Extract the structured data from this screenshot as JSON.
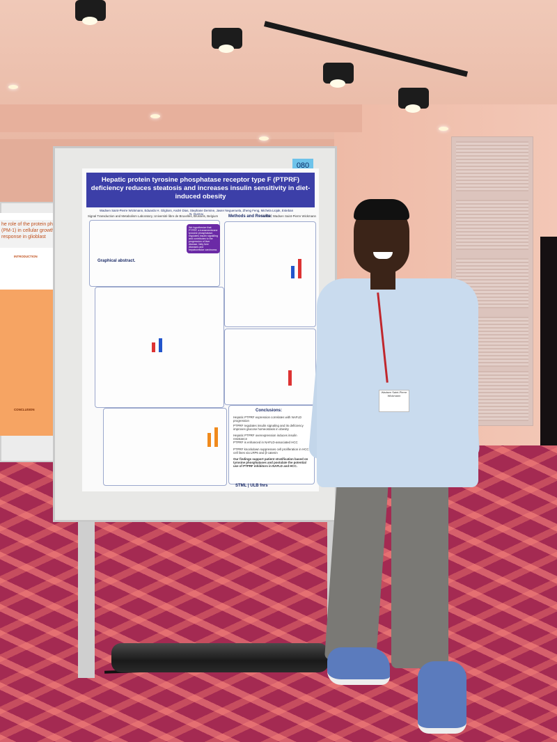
{
  "poster": {
    "number_tag": "080",
    "title": "Hepatic protein tyrosine phosphatase receptor type F (PTPRF) deficiency reduces steatosis and increases insulin sensitivity in diet-induced obesity",
    "authors": "Wadsen Saint-Pierre Wickmann, Eduardo H. Gilglioni, André Dias, Stephane Demine, Javier Negueruela, Zheng Feng, Michela Liojak, Esteban N. Gurzov",
    "affiliation": "Signal Transduction and Metabolism Laboratory, Université libre de Bruxelles, Brussels, Belgium",
    "contact": "Contact: Wadsen Saint-Pierre Wickmann",
    "hypothesis": "We hypothesize that PTPRF, a transmembrane tyrosine phosphatase, regulates insulin signalling and contributes to the progression of liver disease, fatty liver diseases and hepatocellular carcinoma.",
    "section_methods": "Methods and Results:",
    "section_graphical": "Graphical abstract.",
    "conclusions_title": "Conclusions:",
    "conclusions": [
      "Hepatic PTPRF expression correlates with NAFLD progression",
      "PTPRF regulates insulin signaling and its deficiency improves glucose homeostasis in obesity",
      "Hepatic PTPRF overexpression induces insulin resistance",
      "PTPRF is enhanced in NAFLD-associated HCC",
      "PTPRF knockdown suppresses cell proliferation in HCC cell lines via LRP6 and β-catenin"
    ],
    "closing": "Our findings support patient stratification based on tyrosine phosphatases and postulate the potential use of PTPRF inhibitors in NAFLD and HCC.",
    "logos": "STML | ULB  fnrs"
  },
  "left_poster": {
    "title_fragment": "he role of the protein phospha (PM-1) in cellular growth and response in glioblast",
    "sections": [
      "INTRODUCTION",
      "CONCLUSION"
    ]
  },
  "badge": {
    "text": "Wadsen Saint-Pierre Wickmann"
  },
  "colors": {
    "poster_title_band": "#3c3fa8",
    "carpet": "#a42a52",
    "wall": "#e9b9a6",
    "tag": "#6ec3ea"
  }
}
